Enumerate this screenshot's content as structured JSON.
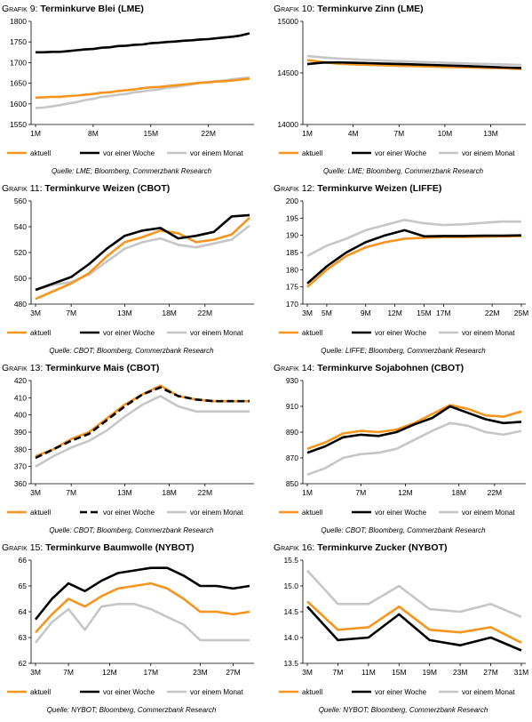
{
  "colors": {
    "aktuell": "#f7941d",
    "woche": "#000000",
    "monat": "#c6c6c6"
  },
  "legend_labels": {
    "aktuell": "aktuell",
    "woche": "vor einer Woche",
    "monat": "vor einem Monat"
  },
  "panels": [
    {
      "title_prefix": "Grafik 9:",
      "title": "Terminkurve Blei (LME)",
      "source": "Quelle: LME; Bloomberg, Commerzbank Research",
      "chart_data": {
        "type": "line",
        "x": [
          1,
          2,
          3,
          4,
          5,
          6,
          7,
          8,
          9,
          10,
          11,
          12,
          13,
          14,
          15,
          16,
          17,
          18,
          19,
          20,
          21,
          22,
          23,
          24,
          25,
          26,
          27
        ],
        "xticks": [
          1,
          8,
          15,
          22
        ],
        "xticklabels": [
          "1M",
          "8M",
          "15M",
          "22M"
        ],
        "ylim": [
          1550,
          1800
        ],
        "yticks": [
          1550,
          1600,
          1650,
          1700,
          1750,
          1800
        ],
        "series": [
          {
            "name": "aktuell",
            "values": [
              1615,
              1616,
              1617,
              1617,
              1619,
              1620,
              1622,
              1624,
              1627,
              1628,
              1631,
              1633,
              1635,
              1638,
              1640,
              1641,
              1643,
              1645,
              1647,
              1649,
              1651,
              1652,
              1654,
              1655,
              1657,
              1659,
              1661
            ]
          },
          {
            "name": "vor einer Woche",
            "values": [
              1725,
              1725,
              1726,
              1726,
              1728,
              1730,
              1732,
              1733,
              1736,
              1737,
              1740,
              1741,
              1743,
              1744,
              1747,
              1748,
              1750,
              1751,
              1753,
              1754,
              1756,
              1757,
              1759,
              1761,
              1763,
              1766,
              1771
            ]
          },
          {
            "name": "vor einem Monat",
            "values": [
              1590,
              1591,
              1594,
              1597,
              1601,
              1604,
              1609,
              1612,
              1617,
              1619,
              1622,
              1624,
              1628,
              1630,
              1633,
              1635,
              1639,
              1641,
              1644,
              1647,
              1651,
              1653,
              1655,
              1657,
              1660,
              1662,
              1664
            ]
          }
        ]
      }
    },
    {
      "title_prefix": "Grafik 10:",
      "title": "Terminkurve Zinn (LME)",
      "source": "Quelle: LME; Bloomberg, Commerzbank Research",
      "chart_data": {
        "type": "line",
        "x": [
          1,
          2,
          3,
          4,
          5,
          6,
          7,
          8,
          9,
          10,
          11,
          12,
          13,
          14,
          15
        ],
        "xticks": [
          1,
          4,
          7,
          10,
          13
        ],
        "xticklabels": [
          "1M",
          "4M",
          "7M",
          "10M",
          "13M"
        ],
        "ylim": [
          14000,
          15000
        ],
        "yticks": [
          14000,
          14500,
          15000
        ],
        "series": [
          {
            "name": "aktuell",
            "values": [
              14625,
              14605,
              14590,
              14582,
              14578,
              14574,
              14570,
              14566,
              14562,
              14558,
              14555,
              14551,
              14548,
              14545,
              14538
            ]
          },
          {
            "name": "vor einer Woche",
            "values": [
              14585,
              14600,
              14602,
              14598,
              14595,
              14590,
              14587,
              14583,
              14578,
              14573,
              14568,
              14563,
              14558,
              14552,
              14548
            ]
          },
          {
            "name": "vor einem Monat",
            "values": [
              14665,
              14650,
              14640,
              14632,
              14625,
              14619,
              14614,
              14609,
              14603,
              14598,
              14593,
              14589,
              14585,
              14581,
              14577
            ]
          }
        ]
      }
    },
    {
      "title_prefix": "Grafik 11:",
      "title": "Terminkurve Weizen (CBOT)",
      "source": "Quelle: CBOT; Bloomberg, Commerzbank Research",
      "chart_data": {
        "type": "line",
        "x": [
          3,
          5,
          7,
          9,
          11,
          13,
          15,
          17,
          19,
          21,
          23,
          25,
          27
        ],
        "xticks": [
          3,
          7,
          13,
          18,
          22
        ],
        "xticklabels": [
          "3M",
          "7M",
          "13M",
          "18M",
          "22M"
        ],
        "ylim": [
          480,
          560
        ],
        "yticks": [
          480,
          500,
          520,
          540,
          560
        ],
        "series": [
          {
            "name": "aktuell",
            "values": [
              484,
              490,
              496,
              504,
              517,
              528,
              532,
              537,
              535,
              528,
              530,
              534,
              547
            ]
          },
          {
            "name": "vor einer Woche",
            "values": [
              491,
              496,
              501,
              511,
              523,
              533,
              537,
              539,
              531,
              533,
              536,
              548,
              549
            ]
          },
          {
            "name": "vor einem Monat",
            "values": [
              491,
              495,
              497,
              503,
              513,
              523,
              528,
              531,
              526,
              524,
              527,
              530,
              541
            ]
          }
        ]
      }
    },
    {
      "title_prefix": "Grafik 12:",
      "title": "Terminkurve Weizen (LIFFE)",
      "source": "Quelle: LIFFE; Bloomberg, Commerzbank Research",
      "chart_data": {
        "type": "line",
        "x": [
          3,
          5,
          7,
          9,
          11,
          13,
          15,
          17,
          19,
          21,
          23,
          25
        ],
        "xticks": [
          3,
          5,
          9,
          12,
          15,
          17,
          22,
          25
        ],
        "xticklabels": [
          "3M",
          "5M",
          "9M",
          "12M",
          "15M",
          "17M",
          "22M",
          "25M"
        ],
        "ylim": [
          170,
          200
        ],
        "yticks": [
          170,
          175,
          180,
          185,
          190,
          195,
          200
        ],
        "series": [
          {
            "name": "aktuell",
            "values": [
              175,
              180,
              184,
              186.5,
              188,
              189,
              189.3,
              189.5,
              189.5,
              189.6,
              189.7,
              189.8
            ]
          },
          {
            "name": "vor einer Woche",
            "values": [
              176,
              181,
              185,
              188,
              190,
              191.5,
              189.7,
              189.8,
              189.8,
              189.9,
              189.9,
              190
            ]
          },
          {
            "name": "vor einem Monat",
            "values": [
              184,
              187,
              189,
              191.5,
              193,
              194.5,
              193.5,
              193,
              193.2,
              193.6,
              194,
              194
            ]
          }
        ]
      }
    },
    {
      "title_prefix": "Grafik 13:",
      "title": "Terminkurve Mais (CBOT)",
      "source": "Quelle: CBOT; Bloomberg, Commerzbank Research",
      "chart_data": {
        "type": "line",
        "x": [
          3,
          5,
          7,
          9,
          11,
          13,
          15,
          17,
          19,
          21,
          23,
          25,
          27
        ],
        "xticks": [
          3,
          7,
          13,
          18,
          22
        ],
        "xticklabels": [
          "3M",
          "7M",
          "13M",
          "18M",
          "22M"
        ],
        "ylim": [
          360,
          420
        ],
        "yticks": [
          360,
          370,
          380,
          390,
          400,
          410,
          420
        ],
        "series": [
          {
            "name": "aktuell",
            "values": [
              376,
              380,
              386,
              390,
              398,
              406,
              412,
              417,
              411,
              409,
              408,
              408,
              408
            ]
          },
          {
            "name": "vor einer Woche",
            "values": [
              375,
              380,
              385,
              389,
              397,
              405,
              412,
              416,
              411,
              409,
              408,
              408,
              408
            ]
          },
          {
            "name": "vor einem Monat",
            "values": [
              370,
              376,
              381,
              385,
              391,
              399,
              406,
              411,
              405,
              402,
              402,
              402,
              402
            ]
          }
        ]
      }
    },
    {
      "title_prefix": "Grafik 14:",
      "title": "Terminkurve Sojabohnen (CBOT)",
      "source": "Quelle: CBOT; Bloomberg, Commerzbank Research",
      "chart_data": {
        "type": "line",
        "x": [
          1,
          3,
          5,
          7,
          9,
          11,
          13,
          15,
          17,
          19,
          21,
          23,
          25
        ],
        "xticks": [
          1,
          7,
          12,
          18,
          22
        ],
        "xticklabels": [
          "1M",
          "7M",
          "12M",
          "18M",
          "22M"
        ],
        "ylim": [
          850,
          930
        ],
        "yticks": [
          850,
          870,
          890,
          910,
          930
        ],
        "series": [
          {
            "name": "aktuell",
            "values": [
              877,
              882,
              889,
              891,
              890,
              892,
              897,
              904,
              911,
              908,
              903,
              902,
              906
            ]
          },
          {
            "name": "vor einer Woche",
            "values": [
              874,
              879,
              886,
              888,
              887,
              890,
              896,
              901,
              910,
              905,
              900,
              897,
              898
            ]
          },
          {
            "name": "vor einem Monat",
            "values": [
              857,
              862,
              870,
              873,
              874,
              877,
              884,
              891,
              897,
              895,
              890,
              888,
              891
            ]
          }
        ]
      }
    },
    {
      "title_prefix": "Grafik 15:",
      "title": "Terminkurve Baumwolle (NYBOT)",
      "source": "Quelle: NYBOT; Bloomberg, Commerzbank Research",
      "chart_data": {
        "type": "line",
        "x": [
          3,
          5,
          7,
          9,
          11,
          13,
          15,
          17,
          19,
          21,
          23,
          25,
          27,
          29
        ],
        "xticks": [
          3,
          7,
          12,
          17,
          23,
          27
        ],
        "xticklabels": [
          "3M",
          "7M",
          "12M",
          "17M",
          "23M",
          "27M"
        ],
        "ylim": [
          62,
          66
        ],
        "yticks": [
          62,
          63,
          64,
          65,
          66
        ],
        "series": [
          {
            "name": "aktuell",
            "values": [
              63.2,
              63.9,
              64.5,
              64.2,
              64.6,
              64.9,
              65.0,
              65.1,
              64.9,
              64.5,
              64.0,
              64.0,
              63.9,
              64.0
            ]
          },
          {
            "name": "vor einer Woche",
            "values": [
              63.7,
              64.5,
              65.1,
              64.8,
              65.2,
              65.5,
              65.6,
              65.7,
              65.7,
              65.4,
              65.0,
              65.0,
              64.9,
              65.0
            ]
          },
          {
            "name": "vor einem Monat",
            "values": [
              62.8,
              63.6,
              64.1,
              63.3,
              64.2,
              64.3,
              64.3,
              64.1,
              63.8,
              63.5,
              62.9,
              62.9,
              62.9,
              62.9
            ]
          }
        ]
      }
    },
    {
      "title_prefix": "Grafik 16:",
      "title": "Terminkurve Zucker (NYBOT)",
      "source": "Quelle: NYBOT; Bloomberg, Commerzbank Research",
      "chart_data": {
        "type": "line",
        "x": [
          3,
          7,
          11,
          15,
          19,
          23,
          27,
          31
        ],
        "xticks": [
          3,
          7,
          11,
          15,
          19,
          23,
          27,
          31
        ],
        "xticklabels": [
          "3M",
          "7M",
          "11M",
          "15M",
          "19M",
          "23M",
          "27M",
          "31M"
        ],
        "ylim": [
          13.5,
          15.5
        ],
        "yticks": [
          13.5,
          14.0,
          14.5,
          15.0,
          15.5
        ],
        "series": [
          {
            "name": "aktuell",
            "values": [
              14.7,
              14.15,
              14.2,
              14.6,
              14.15,
              14.1,
              14.2,
              13.9
            ]
          },
          {
            "name": "vor einer Woche",
            "values": [
              14.6,
              13.95,
              14.0,
              14.45,
              13.95,
              13.85,
              14.0,
              13.75
            ]
          },
          {
            "name": "vor einem Monat",
            "values": [
              15.3,
              14.65,
              14.65,
              15.0,
              14.55,
              14.5,
              14.65,
              14.4
            ]
          }
        ]
      }
    }
  ]
}
